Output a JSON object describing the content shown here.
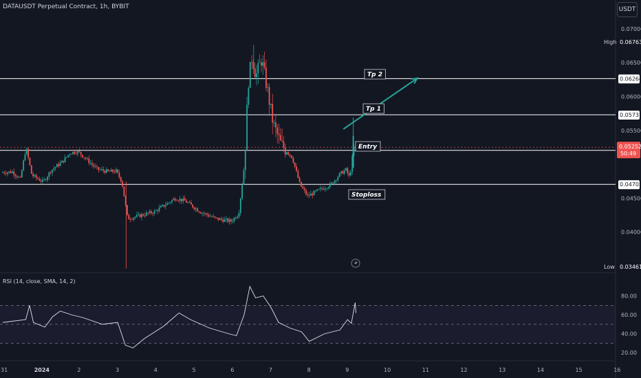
{
  "header": {
    "title": "DATAUSDT Perpetual Contract, 1h, BYBIT",
    "currency_label": "USDT"
  },
  "price_axis": {
    "ticks": [
      "0.07000",
      "0.06500",
      "0.06000",
      "0.05500",
      "0.04500",
      "0.04000"
    ],
    "high_label": "High",
    "high_value": "0.06763",
    "low_label": "Low",
    "low_value": "0.03461",
    "level_badges": [
      "0.06264",
      "0.05731",
      "0.05206",
      "0.04705"
    ],
    "current_price": "0.05252",
    "countdown": "50:49"
  },
  "annotations": {
    "tp2": "Tp 2",
    "tp1": "Tp 1",
    "entry": "Entry",
    "stoploss": "Stoploss"
  },
  "rsi": {
    "title": "RSI (14, close, SMA, 14, 2)",
    "ticks": [
      "80.00",
      "60.00",
      "40.00",
      "20.00"
    ]
  },
  "time_axis": {
    "labels": [
      "31",
      "2024",
      "2",
      "3",
      "4",
      "5",
      "6",
      "7",
      "8",
      "9",
      "10",
      "11",
      "12",
      "13",
      "14",
      "15",
      "16"
    ]
  },
  "colors": {
    "background": "#131722",
    "up": "#26a69a",
    "down": "#ef5350",
    "level_line": "#ffffff",
    "arrow": "#26a69a",
    "rsi_line": "#e0e3eb",
    "rsi_band": "#7e57c2"
  },
  "chart_data": {
    "type": "candlestick",
    "symbol": "DATAUSDT",
    "interval": "1h",
    "ylim": [
      0.0345,
      0.0715
    ],
    "horizontal_levels": [
      0.06264,
      0.05731,
      0.05206,
      0.04705
    ],
    "arrow": {
      "from": [
        9.0,
        0.0552
      ],
      "to": [
        11.0,
        0.0627
      ]
    },
    "x_ticks": [
      "31",
      "2024",
      "2",
      "3",
      "4",
      "5",
      "6",
      "7",
      "8",
      "9",
      "10",
      "11",
      "12",
      "13",
      "14",
      "15",
      "16"
    ],
    "price_path": [
      [
        0.0,
        0.0488
      ],
      [
        0.3,
        0.0489
      ],
      [
        0.5,
        0.0478
      ],
      [
        0.65,
        0.0525
      ],
      [
        0.8,
        0.0484
      ],
      [
        1.1,
        0.0474
      ],
      [
        1.3,
        0.0491
      ],
      [
        1.6,
        0.0504
      ],
      [
        1.8,
        0.0517
      ],
      [
        2.0,
        0.0519
      ],
      [
        2.2,
        0.0509
      ],
      [
        2.5,
        0.0493
      ],
      [
        2.8,
        0.0489
      ],
      [
        3.0,
        0.049
      ],
      [
        3.15,
        0.0475
      ],
      [
        3.3,
        0.042
      ],
      [
        3.6,
        0.0424
      ],
      [
        4.0,
        0.043
      ],
      [
        4.3,
        0.0441
      ],
      [
        4.55,
        0.045
      ],
      [
        4.8,
        0.0446
      ],
      [
        5.2,
        0.043
      ],
      [
        5.6,
        0.042
      ],
      [
        6.0,
        0.0416
      ],
      [
        6.2,
        0.0427
      ],
      [
        6.35,
        0.05
      ],
      [
        6.45,
        0.062
      ],
      [
        6.55,
        0.066
      ],
      [
        6.65,
        0.063
      ],
      [
        6.8,
        0.0655
      ],
      [
        6.95,
        0.061
      ],
      [
        7.1,
        0.056
      ],
      [
        7.3,
        0.053
      ],
      [
        7.6,
        0.051
      ],
      [
        7.8,
        0.047
      ],
      [
        8.0,
        0.0453
      ],
      [
        8.3,
        0.0462
      ],
      [
        8.6,
        0.047
      ],
      [
        8.85,
        0.0486
      ],
      [
        9.0,
        0.0492
      ],
      [
        9.1,
        0.048
      ],
      [
        9.2,
        0.0525
      ]
    ],
    "high": 0.06763,
    "low": 0.03461,
    "current_price": 0.05252,
    "rsi": {
      "title": "RSI (14, close, SMA, 14, 2)",
      "ylim": [
        15,
        95
      ],
      "bands": [
        30,
        50,
        70
      ],
      "series": [
        [
          0.0,
          52
        ],
        [
          0.6,
          55
        ],
        [
          0.7,
          70
        ],
        [
          0.8,
          52
        ],
        [
          1.1,
          47
        ],
        [
          1.3,
          58
        ],
        [
          1.5,
          64
        ],
        [
          1.8,
          60
        ],
        [
          2.1,
          57
        ],
        [
          2.6,
          50
        ],
        [
          3.0,
          52
        ],
        [
          3.2,
          28
        ],
        [
          3.4,
          25
        ],
        [
          3.7,
          35
        ],
        [
          4.2,
          48
        ],
        [
          4.6,
          62
        ],
        [
          4.9,
          55
        ],
        [
          5.4,
          46
        ],
        [
          5.9,
          40
        ],
        [
          6.1,
          38
        ],
        [
          6.3,
          60
        ],
        [
          6.45,
          90
        ],
        [
          6.6,
          78
        ],
        [
          6.8,
          80
        ],
        [
          7.0,
          68
        ],
        [
          7.2,
          52
        ],
        [
          7.5,
          46
        ],
        [
          7.8,
          42
        ],
        [
          8.0,
          32
        ],
        [
          8.4,
          40
        ],
        [
          8.8,
          44
        ],
        [
          9.0,
          55
        ],
        [
          9.1,
          51
        ],
        [
          9.2,
          73
        ],
        [
          9.22,
          62
        ]
      ]
    }
  }
}
